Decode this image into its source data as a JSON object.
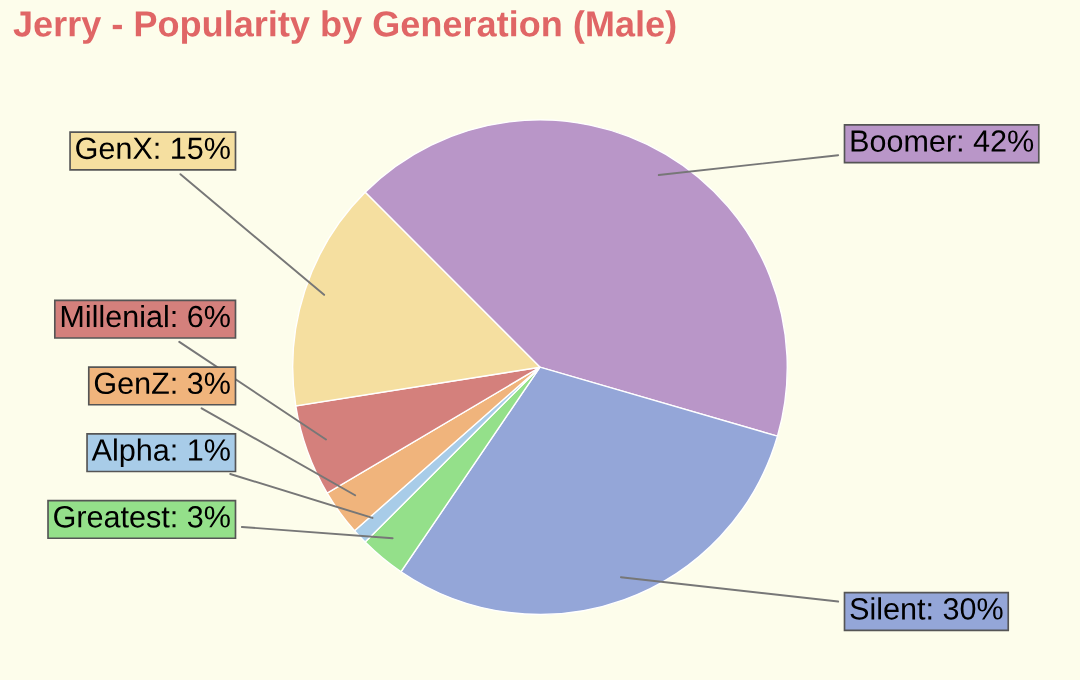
{
  "chart_data": {
    "type": "pie",
    "title": "Jerry - Popularity by Generation (Male)",
    "categories": [
      "Boomer",
      "Silent",
      "Greatest",
      "Alpha",
      "GenZ",
      "Millenial",
      "GenX"
    ],
    "values": [
      42,
      30,
      3,
      1,
      3,
      6,
      15
    ],
    "value_labels": [
      "42%",
      "30%",
      "3%",
      "1%",
      "3%",
      "6%",
      "15%"
    ],
    "colors": [
      "#b996c8",
      "#94a6d8",
      "#94e08a",
      "#a8cce8",
      "#f0b47c",
      "#d4807c",
      "#f5dfa0"
    ],
    "legend": false
  }
}
